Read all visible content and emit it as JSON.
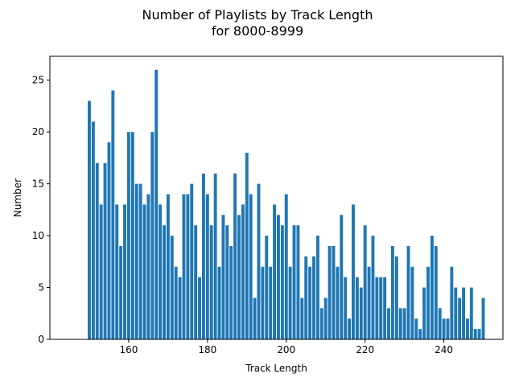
{
  "chart_data": {
    "type": "bar",
    "title_line1": "Number of Playlists by Track Length",
    "title_line2": "for 8000-8999",
    "xlabel": "Track Length",
    "ylabel": "Number",
    "xlim": [
      140,
      255
    ],
    "ylim": [
      0,
      27.3
    ],
    "xticks": [
      160,
      180,
      200,
      220,
      240
    ],
    "yticks": [
      0,
      5,
      10,
      15,
      20,
      25
    ],
    "grid": false,
    "color": "#1f77b4",
    "x": [
      150,
      151,
      152,
      153,
      154,
      155,
      156,
      157,
      158,
      159,
      160,
      161,
      162,
      163,
      164,
      165,
      166,
      167,
      168,
      169,
      170,
      171,
      172,
      173,
      174,
      175,
      176,
      177,
      178,
      179,
      180,
      181,
      182,
      183,
      184,
      185,
      186,
      187,
      188,
      189,
      190,
      191,
      192,
      193,
      194,
      195,
      196,
      197,
      198,
      199,
      200,
      201,
      202,
      203,
      204,
      205,
      206,
      207,
      208,
      209,
      210,
      211,
      212,
      213,
      214,
      215,
      216,
      217,
      218,
      219,
      220,
      221,
      222,
      223,
      224,
      225,
      226,
      227,
      228,
      229,
      230,
      231,
      232,
      233,
      234,
      235,
      236,
      237,
      238,
      239,
      240,
      241,
      242,
      243,
      244,
      245,
      246,
      247,
      248,
      249,
      250
    ],
    "values": [
      23,
      21,
      17,
      13,
      17,
      19,
      24,
      13,
      9,
      13,
      20,
      20,
      15,
      15,
      13,
      14,
      20,
      26,
      13,
      11,
      14,
      10,
      7,
      6,
      14,
      14,
      15,
      11,
      6,
      16,
      14,
      11,
      16,
      7,
      12,
      11,
      9,
      16,
      12,
      13,
      18,
      14,
      4,
      15,
      7,
      10,
      7,
      13,
      12,
      11,
      14,
      7,
      11,
      11,
      4,
      8,
      7,
      8,
      10,
      3,
      4,
      9,
      9,
      7,
      12,
      6,
      2,
      13,
      6,
      5,
      11,
      7,
      10,
      6,
      6,
      6,
      3,
      9,
      8,
      3,
      3,
      9,
      7,
      2,
      1,
      5,
      7,
      10,
      9,
      3,
      2,
      2,
      7,
      5,
      4,
      5,
      2,
      5,
      1,
      1,
      4
    ]
  }
}
